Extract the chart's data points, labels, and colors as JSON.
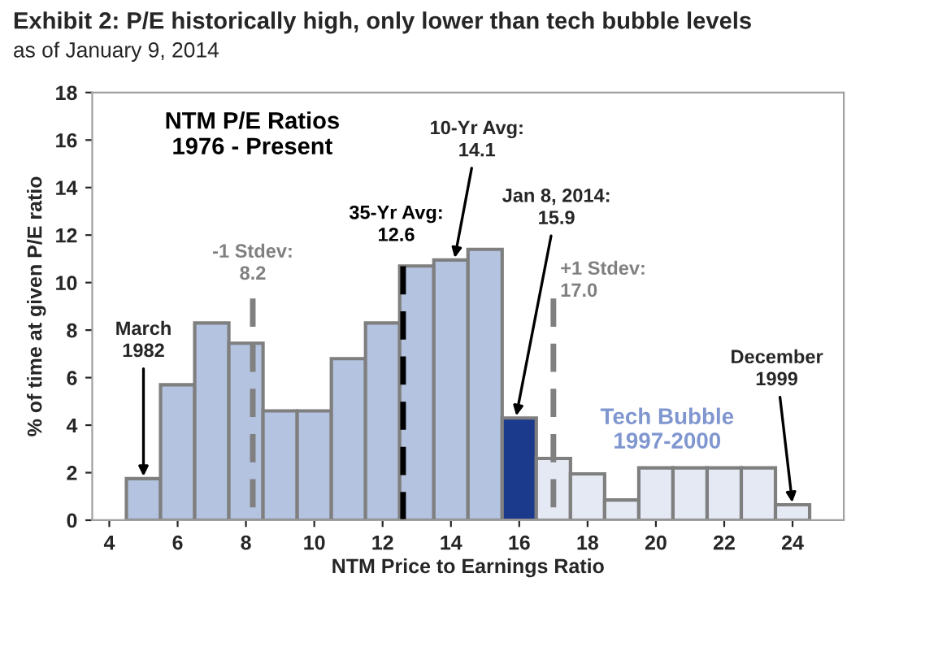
{
  "chart_data": {
    "type": "histogram",
    "title": "Exhibit 2: P/E historically high, only lower than tech bubble levels",
    "subtitle": "as of January 9, 2014",
    "xlabel": "NTM Price to Earnings Ratio",
    "ylabel": "% of time at given P/E ratio",
    "bins": [
      4.5,
      5.5,
      6.5,
      7.5,
      8.5,
      9.5,
      10.5,
      11.5,
      12.5,
      13.5,
      14.5,
      15.5,
      16.5,
      17.5,
      18.5,
      19.5,
      20.5,
      21.5,
      22.5,
      23.5,
      24.5
    ],
    "values": [
      1.75,
      5.7,
      8.3,
      7.45,
      4.6,
      4.6,
      6.8,
      8.3,
      10.7,
      10.95,
      11.4,
      4.3,
      2.6,
      1.95,
      0.85,
      2.2,
      2.2,
      2.2,
      2.2,
      0.65
    ],
    "colors": [
      "#b4c3e0",
      "#b4c3e0",
      "#b4c3e0",
      "#b4c3e0",
      "#b4c3e0",
      "#b4c3e0",
      "#b4c3e0",
      "#b4c3e0",
      "#b4c3e0",
      "#b4c3e0",
      "#b4c3e0",
      "#1b3a8c",
      "#e4e9f4",
      "#e4e9f4",
      "#e4e9f4",
      "#e4e9f4",
      "#e4e9f4",
      "#e4e9f4",
      "#e4e9f4",
      "#e4e9f4"
    ],
    "xlim": [
      3.5,
      25.5
    ],
    "xticks": [
      4,
      6,
      8,
      10,
      12,
      14,
      16,
      18,
      20,
      22,
      24
    ],
    "ylim": [
      0,
      18
    ],
    "yticks": [
      0,
      2,
      4,
      6,
      8,
      10,
      12,
      14,
      16,
      18
    ],
    "grid": false,
    "legend": false,
    "ref_lines": [
      {
        "axis": "x",
        "value": 8.2,
        "label": "-1 Stdev:\n8.2",
        "color": "#808080",
        "line_style": "dashed"
      },
      {
        "axis": "x",
        "value": 12.6,
        "label": "35-Yr Avg:\n12.6",
        "color": "#000000",
        "line_style": "dashed"
      },
      {
        "axis": "x",
        "value": 17.0,
        "label": "+1 Stdev:\n17.0",
        "color": "#808080",
        "line_style": "dashed"
      }
    ],
    "annotations": [
      "NTM P/E Ratios\n1976 - Present",
      {
        "text": "March\n1982",
        "x": 5,
        "y": 1.75
      },
      {
        "text": "10-Yr Avg:\n14.1",
        "x": 14.1,
        "y": 10.95
      },
      {
        "text": "Jan 8, 2014:\n15.9",
        "x": 15.9,
        "y": 4.3
      },
      {
        "text": "December\n1999",
        "x": 24,
        "y": 0.65
      },
      "Tech Bubble\n1997-2000"
    ]
  }
}
